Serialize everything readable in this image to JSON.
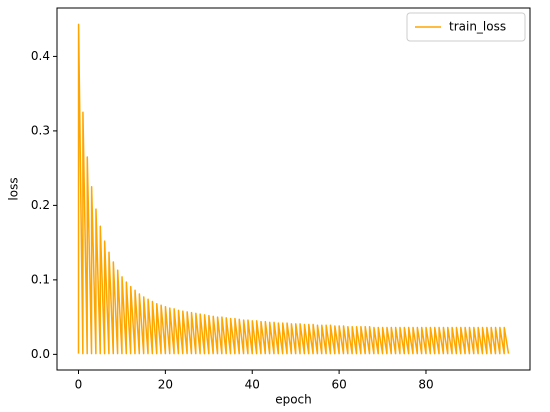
{
  "chart_data": {
    "type": "line",
    "xlabel": "epoch",
    "ylabel": "loss",
    "legend": "upper right",
    "x": [
      0,
      0.02,
      1,
      1.02,
      2,
      2.02,
      3,
      3.02,
      4,
      4.02,
      5,
      5.02,
      6,
      6.02,
      7,
      7.02,
      8,
      8.02,
      9,
      9.02,
      10,
      10.02,
      11,
      11.02,
      12,
      12.02,
      13,
      13.02,
      14,
      14.02,
      15,
      15.02,
      16,
      16.02,
      17,
      17.02,
      18,
      18.02,
      19,
      19.02,
      20,
      20.02,
      21,
      21.02,
      22,
      22.02,
      23,
      23.02,
      24,
      24.02,
      25,
      25.02,
      26,
      26.02,
      27,
      27.02,
      28,
      28.02,
      29,
      29.02,
      30,
      30.02,
      31,
      31.02,
      32,
      32.02,
      33,
      33.02,
      34,
      34.02,
      35,
      35.02,
      36,
      36.02,
      37,
      37.02,
      38,
      38.02,
      39,
      39.02,
      40,
      40.02,
      41,
      41.02,
      42,
      42.02,
      43,
      43.02,
      44,
      44.02,
      45,
      45.02,
      46,
      46.02,
      47,
      47.02,
      48,
      48.02,
      49,
      49.02,
      50,
      50.02,
      51,
      51.02,
      52,
      52.02,
      53,
      53.02,
      54,
      54.02,
      55,
      55.02,
      56,
      56.02,
      57,
      57.02,
      58,
      58.02,
      59,
      59.02,
      60,
      60.02,
      61,
      61.02,
      62,
      62.02,
      63,
      63.02,
      64,
      64.02,
      65,
      65.02,
      66,
      66.02,
      67,
      67.02,
      68,
      68.02,
      69,
      69.02,
      70,
      70.02,
      71,
      71.02,
      72,
      72.02,
      73,
      73.02,
      74,
      74.02,
      75,
      75.02,
      76,
      76.02,
      77,
      77.02,
      78,
      78.02,
      79,
      79.02,
      80,
      80.02,
      81,
      81.02,
      82,
      82.02,
      83,
      83.02,
      84,
      84.02,
      85,
      85.02,
      86,
      86.02,
      87,
      87.02,
      88,
      88.02,
      89,
      89.02,
      90,
      90.02,
      91,
      91.02,
      92,
      92.02,
      93,
      93.02,
      94,
      94.02,
      95,
      95.02,
      96,
      96.02,
      97,
      97.02,
      98,
      98.02,
      99
    ],
    "series": [
      {
        "name": "train_loss",
        "color": "#ffa500",
        "values": [
          0.001,
          0.443,
          0.001,
          0.325,
          0.001,
          0.265,
          0.001,
          0.225,
          0.001,
          0.195,
          0.001,
          0.172,
          0.001,
          0.152,
          0.001,
          0.137,
          0.001,
          0.124,
          0.001,
          0.113,
          0.001,
          0.104,
          0.001,
          0.097,
          0.001,
          0.091,
          0.001,
          0.086,
          0.001,
          0.081,
          0.001,
          0.077,
          0.001,
          0.074,
          0.001,
          0.071,
          0.001,
          0.068,
          0.001,
          0.066,
          0.001,
          0.064,
          0.001,
          0.062,
          0.001,
          0.061,
          0.001,
          0.059,
          0.001,
          0.058,
          0.001,
          0.057,
          0.001,
          0.056,
          0.001,
          0.055,
          0.001,
          0.054,
          0.001,
          0.053,
          0.001,
          0.052,
          0.001,
          0.051,
          0.001,
          0.05,
          0.001,
          0.05,
          0.001,
          0.049,
          0.001,
          0.048,
          0.001,
          0.048,
          0.001,
          0.047,
          0.001,
          0.046,
          0.001,
          0.046,
          0.001,
          0.045,
          0.001,
          0.045,
          0.001,
          0.044,
          0.001,
          0.044,
          0.001,
          0.043,
          0.001,
          0.043,
          0.001,
          0.042,
          0.001,
          0.042,
          0.001,
          0.042,
          0.001,
          0.041,
          0.001,
          0.041,
          0.001,
          0.041,
          0.001,
          0.04,
          0.001,
          0.04,
          0.001,
          0.04,
          0.001,
          0.039,
          0.001,
          0.039,
          0.001,
          0.039,
          0.001,
          0.039,
          0.001,
          0.038,
          0.001,
          0.038,
          0.001,
          0.038,
          0.001,
          0.037,
          0.001,
          0.037,
          0.001,
          0.037,
          0.001,
          0.037,
          0.001,
          0.037,
          0.001,
          0.037,
          0.001,
          0.036,
          0.001,
          0.036,
          0.001,
          0.036,
          0.001,
          0.036,
          0.001,
          0.036,
          0.001,
          0.036,
          0.001,
          0.036,
          0.001,
          0.036,
          0.001,
          0.036,
          0.001,
          0.036,
          0.001,
          0.036,
          0.001,
          0.036,
          0.001,
          0.036,
          0.001,
          0.036,
          0.001,
          0.036,
          0.001,
          0.036,
          0.001,
          0.036,
          0.001,
          0.036,
          0.001,
          0.036,
          0.001,
          0.036,
          0.001,
          0.036,
          0.001,
          0.036,
          0.001,
          0.036,
          0.001,
          0.036,
          0.001,
          0.036,
          0.001,
          0.036,
          0.001,
          0.036,
          0.001,
          0.036,
          0.001,
          0.036,
          0.001,
          0.036,
          0.001,
          0.036,
          0.001
        ]
      }
    ],
    "xlim": [
      -4.95,
      103.95
    ],
    "xticks": [
      0,
      20,
      40,
      60,
      80
    ],
    "ylim": [
      -0.021,
      0.465
    ],
    "yticks": [
      {
        "value": 0,
        "label": "0.0"
      },
      {
        "value": 0.1,
        "label": "0.1"
      },
      {
        "value": 0.2,
        "label": "0.2"
      },
      {
        "value": 0.3,
        "label": "0.3"
      },
      {
        "value": 0.4,
        "label": "0.4"
      }
    ],
    "grid": false
  }
}
